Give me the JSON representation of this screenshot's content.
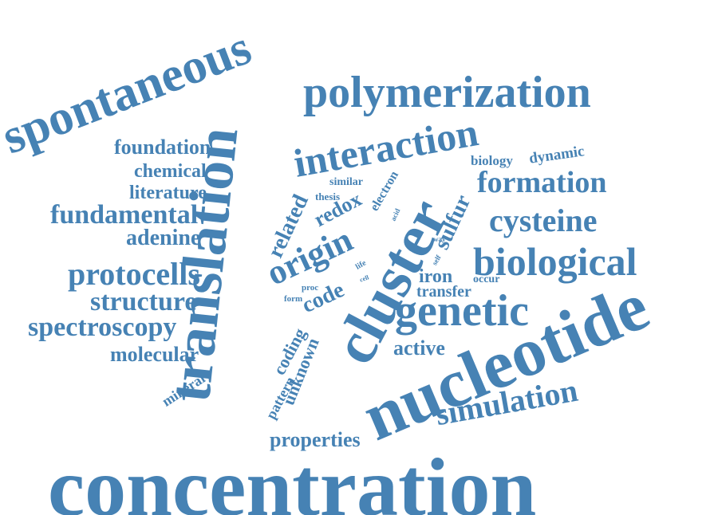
{
  "word_color": "#4682b4",
  "background_color": "#ffffff",
  "words": [
    "concentration",
    "nucleotide",
    "translation",
    "cluster",
    "spontaneous",
    "polymerization",
    "genetic",
    "interaction",
    "biological",
    "origin",
    "formation",
    "cysteine",
    "simulation",
    "protocells",
    "structure",
    "spectroscopy",
    "fundamental",
    "properties",
    "foundation",
    "adenine",
    "molecular",
    "chemical",
    "literature",
    "related",
    "code",
    "redox",
    "active",
    "sulfur",
    "coding",
    "unknown",
    "iron",
    "transfer",
    "biology",
    "dynamic",
    "mineral",
    "pattern",
    "electron",
    "similar",
    "thesis",
    "occur",
    "form",
    "proc",
    "life",
    "cell",
    "acid",
    "way",
    "self"
  ]
}
